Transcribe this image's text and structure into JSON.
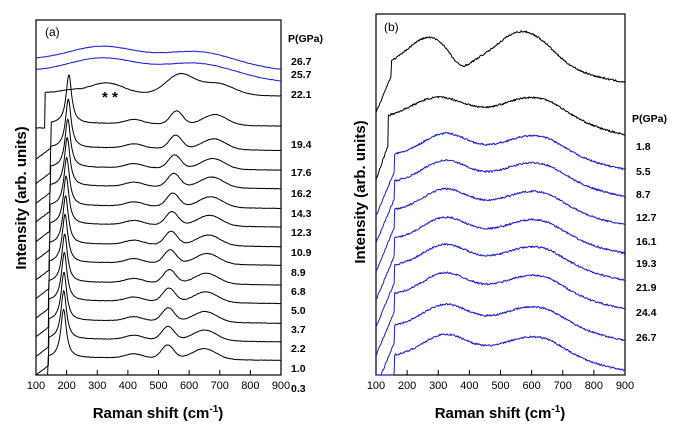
{
  "chart_data": [
    {
      "type": "line",
      "panel_label": "(a)",
      "xlabel": "Raman shift (cm",
      "xlabel_sup": "-1",
      "xlabel_end": ")",
      "ylabel": "Intensity (arb. units)",
      "xlim": [
        100,
        900
      ],
      "xticks": [
        "100",
        "200",
        "300",
        "400",
        "500",
        "600",
        "700",
        "800",
        "900"
      ],
      "legend_title": "P(GPa)",
      "annotation": "* *",
      "series": [
        {
          "name": "26.7",
          "color": "#1c1ccf",
          "family": "amorphous",
          "offset": 26.7
        },
        {
          "name": "25.7",
          "color": "#1c1ccf",
          "family": "amorphous",
          "offset": 25.7
        },
        {
          "name": "22.1",
          "color": "#000000",
          "family": "transition",
          "offset": 24.3
        },
        {
          "name": "19.4",
          "color": "#000000",
          "family": "crystal",
          "offset": 21.6,
          "shift": 29
        },
        {
          "name": "17.6",
          "color": "#000000",
          "family": "crystal",
          "offset": 19.5,
          "shift": 26
        },
        {
          "name": "16.2",
          "color": "#000000",
          "family": "crystal",
          "offset": 17.8,
          "shift": 23
        },
        {
          "name": "14.3",
          "color": "#000000",
          "family": "crystal",
          "offset": 16.2,
          "shift": 20
        },
        {
          "name": "12.3",
          "color": "#000000",
          "family": "crystal",
          "offset": 14.5,
          "shift": 17
        },
        {
          "name": "10.9",
          "color": "#000000",
          "family": "crystal",
          "offset": 12.9,
          "shift": 14
        },
        {
          "name": "8.9",
          "color": "#000000",
          "family": "crystal",
          "offset": 11.2,
          "shift": 11
        },
        {
          "name": "6.8",
          "color": "#000000",
          "family": "crystal",
          "offset": 9.6,
          "shift": 8
        },
        {
          "name": "5.0",
          "color": "#000000",
          "family": "crystal",
          "offset": 7.9,
          "shift": 6
        },
        {
          "name": "3.7",
          "color": "#000000",
          "family": "crystal",
          "offset": 6.3,
          "shift": 4
        },
        {
          "name": "2.2",
          "color": "#000000",
          "family": "crystal",
          "offset": 4.6,
          "shift": 2
        },
        {
          "name": "1.0",
          "color": "#000000",
          "family": "crystal",
          "offset": 3.0,
          "shift": 1
        },
        {
          "name": "0.3",
          "color": "#000000",
          "family": "crystal",
          "offset": 1.4,
          "shift": 0
        }
      ]
    },
    {
      "type": "line",
      "panel_label": "(b)",
      "xlabel": "Raman shift (cm",
      "xlabel_sup": "-1",
      "xlabel_end": ")",
      "ylabel": "Intensity (arb. units)",
      "xlim": [
        100,
        900
      ],
      "xticks": [
        "100",
        "200",
        "300",
        "400",
        "500",
        "600",
        "700",
        "800",
        "900"
      ],
      "legend_title": "P(GPa)",
      "series": [
        {
          "name": "",
          "color": "#000000",
          "family": "dip",
          "offset": 20.5
        },
        {
          "name": "1.8",
          "color": "#000000",
          "family": "flat",
          "offset": 17.0
        },
        {
          "name": "5.5",
          "color": "#1c1ccf",
          "family": "broad",
          "offset": 14.6
        },
        {
          "name": "8.7",
          "color": "#1c1ccf",
          "family": "broad",
          "offset": 12.8
        },
        {
          "name": "12.7",
          "color": "#1c1ccf",
          "family": "broad",
          "offset": 10.9
        },
        {
          "name": "16.1",
          "color": "#1c1ccf",
          "family": "broad",
          "offset": 9.0
        },
        {
          "name": "19.3",
          "color": "#1c1ccf",
          "family": "broad",
          "offset": 7.2
        },
        {
          "name": "21.9",
          "color": "#1c1ccf",
          "family": "broad",
          "offset": 5.3
        },
        {
          "name": "24.4",
          "color": "#1c1ccf",
          "family": "broad",
          "offset": 3.2
        },
        {
          "name": "26.7",
          "color": "#1c1ccf",
          "family": "broad",
          "offset": 1.2
        }
      ]
    }
  ]
}
